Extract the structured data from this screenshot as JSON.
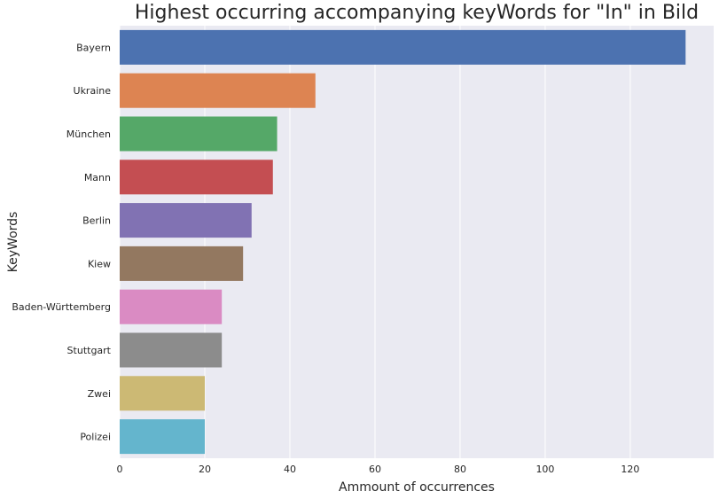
{
  "chart_data": {
    "type": "bar",
    "orientation": "horizontal",
    "title": "Highest occurring accompanying keyWords for \"In\" in Bild",
    "xlabel": "Ammount of occurrences",
    "ylabel": "KeyWords",
    "categories": [
      "Bayern",
      "Ukraine",
      "München",
      "Mann",
      "Berlin",
      "Kiew",
      "Baden-Württemberg",
      "Stuttgart",
      "Zwei",
      "Polizei"
    ],
    "values": [
      133,
      46,
      37,
      36,
      31,
      29,
      24,
      24,
      20,
      20
    ],
    "xlim": [
      0,
      139.6
    ],
    "xticks": [
      0,
      20,
      40,
      60,
      80,
      100,
      120
    ],
    "grid": true,
    "colors": [
      "#4c72b0",
      "#dd8452",
      "#55a868",
      "#c44e52",
      "#8172b3",
      "#937860",
      "#da8bc3",
      "#8c8c8c",
      "#ccb974",
      "#64b5cd"
    ],
    "background": "#eaeaf2"
  }
}
